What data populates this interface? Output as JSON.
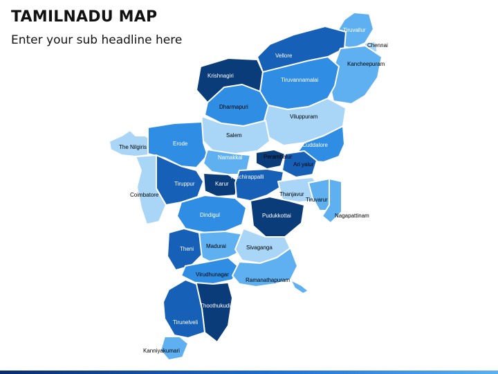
{
  "slide": {
    "title": "TAMILNADU MAP",
    "subtitle": "Enter your sub headline here"
  },
  "colors": {
    "navy": "#0b3c7a",
    "dark": "#1660b8",
    "mid": "#2f8ee3",
    "light": "#5fb0f0",
    "pale": "#a9d6f7",
    "label_on_dark": "#ffffff",
    "label_on_light": "#000000"
  },
  "districts": {
    "tiruvallur": "Tiruvallur",
    "chennai": "Chennai",
    "vellore": "Vellore",
    "krishnagiri": "Krishnagiri",
    "kancheepuram": "Kancheepuram",
    "tiruvannamalai": "Tiruvannamalai",
    "dharmapuri": "Dharmapuri",
    "viluppuram": "Viluppuram",
    "salem": "Salem",
    "the_nilgiris": "The Nilgiris",
    "erode": "Erode",
    "cuddalore": "Cuddalore",
    "namakkal": "Namakkal",
    "perambalur": "Perambalur",
    "ariyalur": "Ari yalur",
    "tiruppur": "Tiruppur",
    "karur": "Karur",
    "tiruchirappalli": "Tiruchirappalli",
    "coimbatore": "Coimbatore",
    "thanjavur": "Thanjavur",
    "tiruvarur": "Tiruvarur",
    "pudukkottai": "Pudukkottai",
    "nagapattinam": "Nagapattinam",
    "dindigul": "Dindigul",
    "theni": "Theni",
    "madurai": "Madurai",
    "sivaganga": "Sivaganga",
    "virudhunagar": "Virudhunagar",
    "ramanathapuram": "Ramanathapuram",
    "thoothukudi": "Thoothukudi",
    "tirunelveli": "Tirunelveli",
    "kanniyakumari": "Kanniyakumari"
  }
}
